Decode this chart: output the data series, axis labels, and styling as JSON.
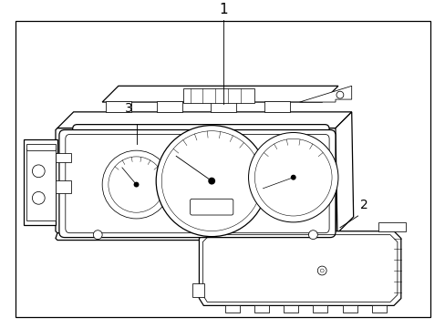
{
  "background_color": "#ffffff",
  "line_color": "#000000",
  "lw": 0.9,
  "tlw": 0.55,
  "label1": "1",
  "label2": "2",
  "label3": "3",
  "figsize": [
    4.89,
    3.6
  ],
  "dpi": 100
}
